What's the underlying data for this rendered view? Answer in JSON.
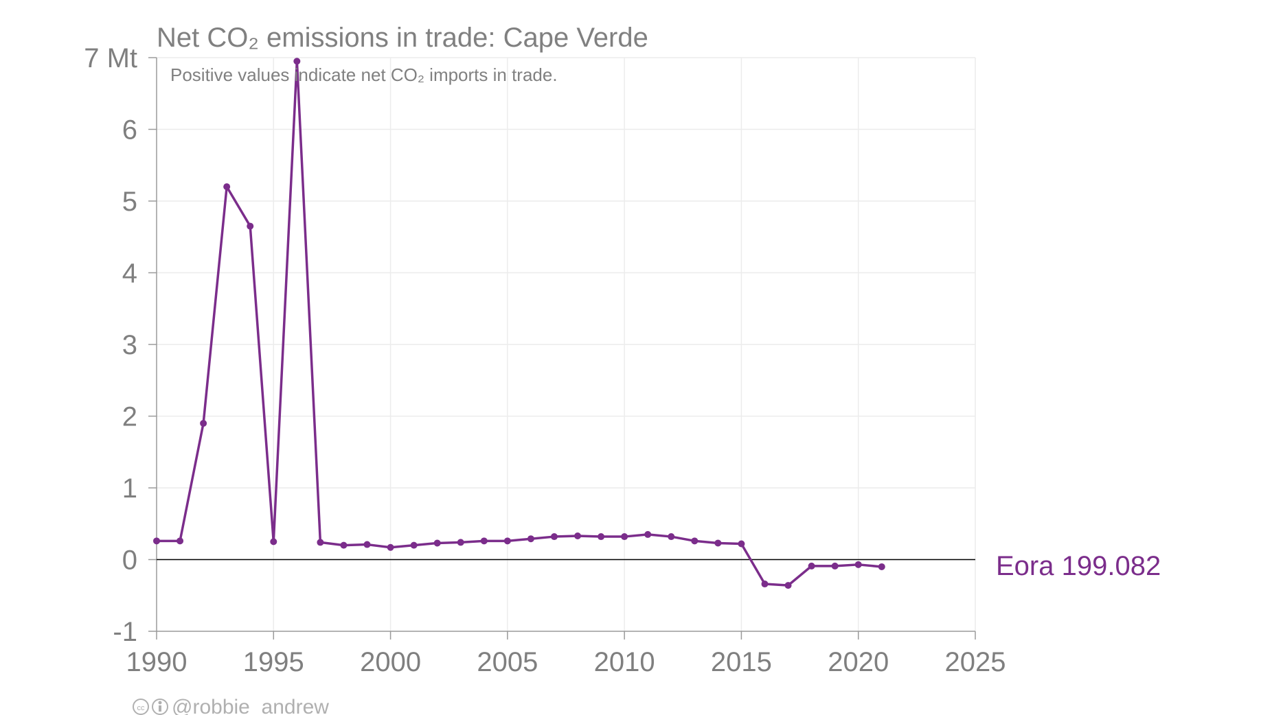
{
  "chart_data": {
    "type": "line",
    "title": "Net CO₂ emissions in trade: Cape Verde",
    "subtitle": "Positive values indicate net CO₂ imports in trade.",
    "xlim": [
      1990,
      2025
    ],
    "ylim": [
      -1,
      7
    ],
    "x_ticks": [
      "1990",
      "1995",
      "2000",
      "2005",
      "2010",
      "2015",
      "2020",
      "2025"
    ],
    "y_ticks": [
      "-1",
      "0",
      "1",
      "2",
      "3",
      "4",
      "5",
      "6",
      "7 Mt"
    ],
    "grid": true,
    "series": [
      {
        "name": "Eora 199.082",
        "color": "#7b2d8b",
        "x": [
          1990,
          1991,
          1992,
          1993,
          1994,
          1995,
          1996,
          1997,
          1998,
          1999,
          2000,
          2001,
          2002,
          2003,
          2004,
          2005,
          2006,
          2007,
          2008,
          2009,
          2010,
          2011,
          2012,
          2013,
          2014,
          2015,
          2016,
          2017,
          2018,
          2019,
          2020,
          2021
        ],
        "y": [
          0.26,
          0.26,
          1.9,
          5.2,
          4.65,
          0.25,
          6.95,
          0.24,
          0.2,
          0.21,
          0.17,
          0.2,
          0.23,
          0.24,
          0.26,
          0.26,
          0.29,
          0.32,
          0.33,
          0.32,
          0.32,
          0.35,
          0.32,
          0.26,
          0.23,
          0.22,
          -0.34,
          -0.36,
          -0.09,
          -0.09,
          -0.07,
          -0.1
        ]
      }
    ]
  },
  "credit": "@robbie_andrew"
}
